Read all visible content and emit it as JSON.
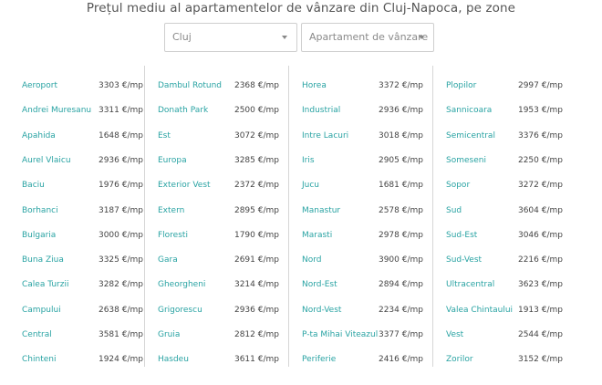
{
  "title": "Prețul mediu al apartamentelor de vânzare din Cluj-Napoca, pe zone",
  "filters": {
    "city": {
      "value": "Cluj",
      "icon": "chevron-down-icon"
    },
    "property_type": {
      "value": "Apartament de vânzare",
      "icon": "chevron-down-icon"
    }
  },
  "colors": {
    "zone_link": "#29a3a3",
    "price_text": "#444444",
    "divider": "#d6d6d6"
  },
  "columns": [
    [
      {
        "zone": "Aeroport",
        "price": "3303 €/mp"
      },
      {
        "zone": "Andrei Muresanu",
        "price": "3311 €/mp"
      },
      {
        "zone": "Apahida",
        "price": "1648 €/mp"
      },
      {
        "zone": "Aurel Vlaicu",
        "price": "2936 €/mp"
      },
      {
        "zone": "Baciu",
        "price": "1976 €/mp"
      },
      {
        "zone": "Borhanci",
        "price": "3187 €/mp"
      },
      {
        "zone": "Bulgaria",
        "price": "3000 €/mp"
      },
      {
        "zone": "Buna Ziua",
        "price": "3325 €/mp"
      },
      {
        "zone": "Calea Turzii",
        "price": "3282 €/mp"
      },
      {
        "zone": "Campului",
        "price": "2638 €/mp"
      },
      {
        "zone": "Central",
        "price": "3581 €/mp"
      },
      {
        "zone": "Chinteni",
        "price": "1924 €/mp"
      }
    ],
    [
      {
        "zone": "Dambul Rotund",
        "price": "2368 €/mp"
      },
      {
        "zone": "Donath Park",
        "price": "2500 €/mp"
      },
      {
        "zone": "Est",
        "price": "3072 €/mp"
      },
      {
        "zone": "Europa",
        "price": "3285 €/mp"
      },
      {
        "zone": "Exterior Vest",
        "price": "2372 €/mp"
      },
      {
        "zone": "Extern",
        "price": "2895 €/mp"
      },
      {
        "zone": "Floresti",
        "price": "1790 €/mp"
      },
      {
        "zone": "Gara",
        "price": "2691 €/mp"
      },
      {
        "zone": "Gheorgheni",
        "price": "3214 €/mp"
      },
      {
        "zone": "Grigorescu",
        "price": "2936 €/mp"
      },
      {
        "zone": "Gruia",
        "price": "2812 €/mp"
      },
      {
        "zone": "Hasdeu",
        "price": "3611 €/mp"
      }
    ],
    [
      {
        "zone": "Horea",
        "price": "3372 €/mp"
      },
      {
        "zone": "Industrial",
        "price": "2936 €/mp"
      },
      {
        "zone": "Intre Lacuri",
        "price": "3018 €/mp"
      },
      {
        "zone": "Iris",
        "price": "2905 €/mp"
      },
      {
        "zone": "Jucu",
        "price": "1681 €/mp"
      },
      {
        "zone": "Manastur",
        "price": "2578 €/mp"
      },
      {
        "zone": "Marasti",
        "price": "2978 €/mp"
      },
      {
        "zone": "Nord",
        "price": "3900 €/mp"
      },
      {
        "zone": "Nord-Est",
        "price": "2894 €/mp"
      },
      {
        "zone": "Nord-Vest",
        "price": "2234 €/mp"
      },
      {
        "zone": "P-ta Mihai Viteazul",
        "price": "3377 €/mp"
      },
      {
        "zone": "Periferie",
        "price": "2416 €/mp"
      }
    ],
    [
      {
        "zone": "Plopilor",
        "price": "2997 €/mp"
      },
      {
        "zone": "Sannicoara",
        "price": "1953 €/mp"
      },
      {
        "zone": "Semicentral",
        "price": "3376 €/mp"
      },
      {
        "zone": "Someseni",
        "price": "2250 €/mp"
      },
      {
        "zone": "Sopor",
        "price": "3272 €/mp"
      },
      {
        "zone": "Sud",
        "price": "3604 €/mp"
      },
      {
        "zone": "Sud-Est",
        "price": "3046 €/mp"
      },
      {
        "zone": "Sud-Vest",
        "price": "2216 €/mp"
      },
      {
        "zone": "Ultracentral",
        "price": "3623 €/mp"
      },
      {
        "zone": "Valea Chintaului",
        "price": "1913 €/mp"
      },
      {
        "zone": "Vest",
        "price": "2544 €/mp"
      },
      {
        "zone": "Zorilor",
        "price": "3152 €/mp"
      }
    ]
  ]
}
